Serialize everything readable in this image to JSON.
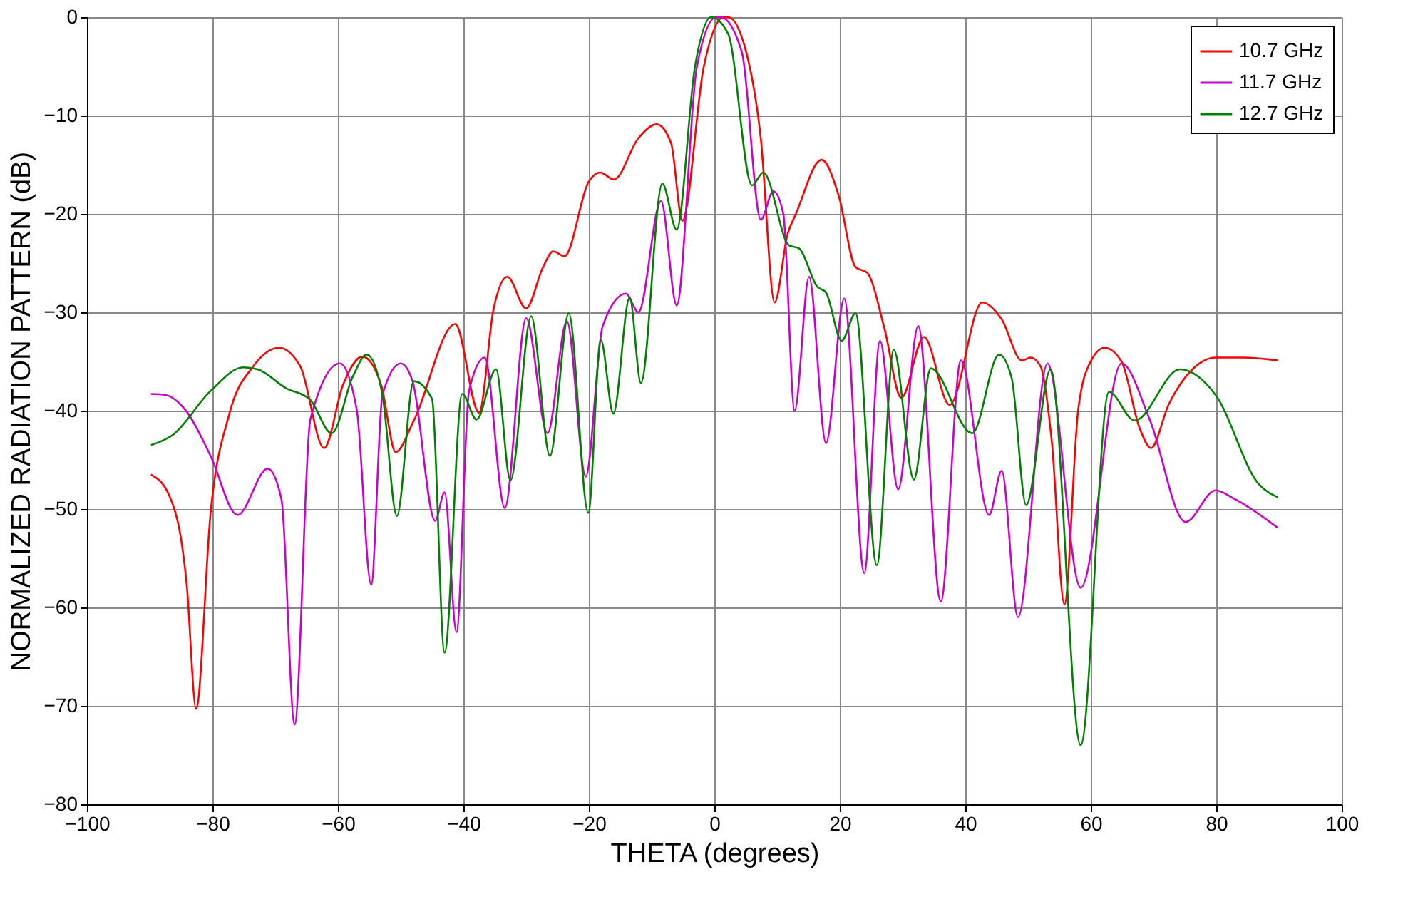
{
  "chart_data": {
    "type": "line",
    "xlabel": "THETA (degrees)",
    "ylabel": "NORMALIZED RADIATION PATTERN (dB)",
    "xlim": [
      -100,
      100
    ],
    "ylim": [
      -80,
      0
    ],
    "xticks": [
      -100,
      -80,
      -60,
      -40,
      -20,
      0,
      20,
      40,
      60,
      80,
      100
    ],
    "yticks": [
      -80,
      -70,
      -60,
      -50,
      -40,
      -30,
      -20,
      -10,
      0
    ],
    "grid": true,
    "legend": "top right",
    "marker": "none",
    "line_style": "solid",
    "series": [
      {
        "name": "10.7 GHz",
        "color": "#ff0000",
        "x": [
          -89.8,
          -86.9,
          -84.1,
          -82.6,
          -80.3,
          -77.3,
          -73.5,
          -69.4,
          -66,
          -62.2,
          -59.2,
          -56.1,
          -53.1,
          -50.8,
          -47.9,
          -41.3,
          -37.5,
          -35.2,
          -33,
          -30,
          -27.3,
          -25.7,
          -23.9,
          -20,
          -18.2,
          -16,
          -12.1,
          -9.2,
          -6.9,
          -5.1,
          -1.7,
          1.5,
          2.2,
          5.1,
          7.4,
          9.6,
          11.7,
          13,
          17.1,
          19.8,
          22.5,
          24.4,
          27.1,
          29.8,
          33.4,
          37.5,
          42.7,
          45.8,
          49,
          50.4,
          52,
          53.8,
          55.8,
          58,
          59.9,
          62.2,
          64.9,
          67.8,
          69.6,
          72.4,
          76.2,
          79.9,
          84.4,
          89.8
        ],
        "values": [
          -46.5,
          -48.6,
          -57.7,
          -70.3,
          -50.4,
          -40.3,
          -35.5,
          -33.6,
          -35.5,
          -43.8,
          -37.4,
          -34.5,
          -37.4,
          -44.2,
          -41,
          -31.2,
          -40.2,
          -29.7,
          -26.4,
          -29.6,
          -25.4,
          -23.8,
          -24.3,
          -16.7,
          -15.8,
          -16.5,
          -12.3,
          -10.9,
          -12.8,
          -20.7,
          -5.1,
          0,
          0,
          -3.6,
          -12.3,
          -29,
          -22,
          -20,
          -14.5,
          -18.1,
          -25.4,
          -26,
          -31.6,
          -38.7,
          -32.5,
          -39.4,
          -29,
          -30.7,
          -34.9,
          -34.6,
          -35.5,
          -43.2,
          -59.7,
          -39.9,
          -35.1,
          -33.6,
          -35,
          -41.8,
          -43.8,
          -39.4,
          -35.8,
          -34.6,
          -34.6,
          -34.9
        ]
      },
      {
        "name": "11.7 GHz",
        "color": "#cc00cc",
        "x": [
          -89.8,
          -87.5,
          -84.1,
          -80.3,
          -76,
          -71.2,
          -69,
          -66.9,
          -64.4,
          -59.7,
          -57,
          -54.7,
          -52.9,
          -50,
          -48.1,
          -44.5,
          -43,
          -41.1,
          -39.1,
          -36.6,
          -33.4,
          -30,
          -26.6,
          -23.5,
          -20.5,
          -17.8,
          -14.1,
          -12.1,
          -8.5,
          -6,
          -2.8,
          0.3,
          1,
          4.4,
          7.4,
          9.4,
          11,
          12.8,
          15.1,
          17.8,
          20.7,
          23.9,
          26.4,
          29.3,
          32.5,
          36.1,
          39.3,
          43.8,
          45.8,
          48.4,
          53.1,
          58.4,
          64.9,
          69.4,
          75.1,
          79.9,
          83,
          89.8
        ],
        "values": [
          -38.3,
          -38.4,
          -40.1,
          -44.6,
          -50.6,
          -45.9,
          -49,
          -71.9,
          -40.9,
          -35.2,
          -39.9,
          -57.7,
          -38.4,
          -35.2,
          -37,
          -51.2,
          -48.3,
          -62.5,
          -38,
          -34.6,
          -49.9,
          -30.6,
          -42.3,
          -30.9,
          -46.7,
          -31.4,
          -28.1,
          -30,
          -18.7,
          -29.3,
          -5.1,
          0,
          0,
          -3.6,
          -20.6,
          -17.7,
          -20,
          -40,
          -26.4,
          -43.3,
          -28.6,
          -56.5,
          -32.9,
          -48,
          -31.4,
          -59.4,
          -34.9,
          -50.6,
          -46.1,
          -61,
          -35.2,
          -58,
          -35.2,
          -40.9,
          -51.3,
          -48.1,
          -49,
          -51.9
        ]
      },
      {
        "name": "12.7 GHz",
        "color": "#008000",
        "x": [
          -89.8,
          -86.4,
          -80.3,
          -75.1,
          -72.8,
          -68.3,
          -64.4,
          -61,
          -57.6,
          -55.4,
          -52.9,
          -50.6,
          -47.9,
          -45,
          -43,
          -40.2,
          -37.9,
          -34.8,
          -32.5,
          -29.2,
          -26.2,
          -23.2,
          -20.1,
          -18.1,
          -16.1,
          -13.5,
          -11.7,
          -8.3,
          -6,
          -3.1,
          -0.5,
          2.2,
          6,
          7.8,
          11.9,
          13.5,
          16.4,
          17.8,
          20.3,
          22.5,
          25.9,
          28.6,
          31.8,
          34.5,
          41.1,
          45.4,
          47.4,
          49.7,
          53.6,
          58.4,
          62.9,
          67,
          74.2,
          79.9,
          86.7,
          89.8
        ],
        "values": [
          -43.5,
          -42.5,
          -38,
          -35.6,
          -35.8,
          -37.7,
          -38.9,
          -42.3,
          -36.5,
          -34.3,
          -38.4,
          -50.7,
          -37,
          -38.8,
          -64.6,
          -38.3,
          -40.9,
          -35.8,
          -47.1,
          -30.4,
          -44.6,
          -30.1,
          -50.4,
          -32.8,
          -40.3,
          -28.5,
          -37.2,
          -16.9,
          -21.6,
          -5.1,
          0,
          -1.7,
          -17.1,
          -15.8,
          -23.2,
          -23.5,
          -27.4,
          -28,
          -32.9,
          -30.1,
          -55.7,
          -33.8,
          -47,
          -35.7,
          -42.3,
          -34.3,
          -36.7,
          -49.6,
          -35.8,
          -74,
          -38.1,
          -41,
          -35.8,
          -38.4,
          -47.4,
          -48.8
        ]
      }
    ]
  }
}
